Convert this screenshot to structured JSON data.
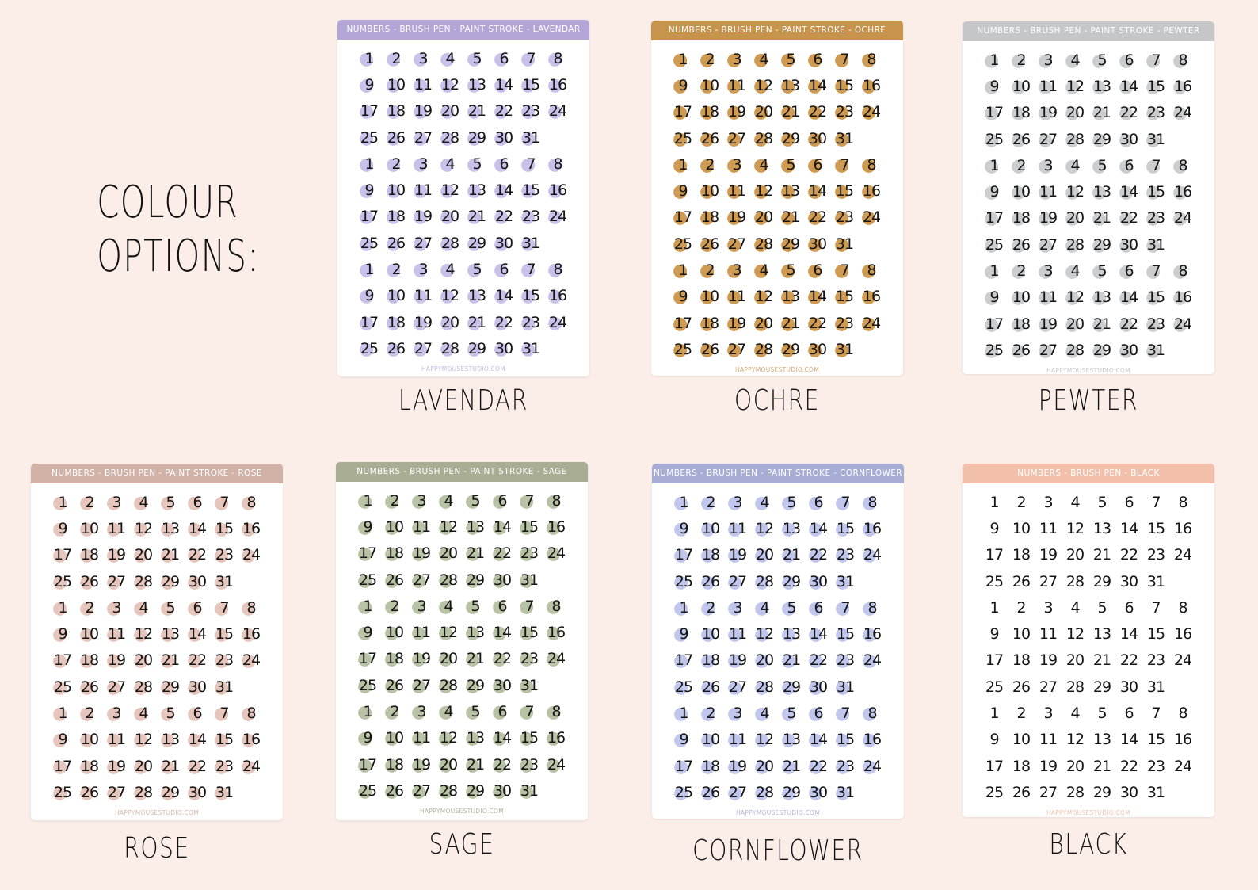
{
  "intro": {
    "line1": "COLOUR",
    "line2": "OPTIONS:"
  },
  "numbers": [
    1,
    2,
    3,
    4,
    5,
    6,
    7,
    8,
    9,
    10,
    11,
    12,
    13,
    14,
    15,
    16,
    17,
    18,
    19,
    20,
    21,
    22,
    23,
    24,
    25,
    26,
    27,
    28,
    29,
    30,
    31
  ],
  "sheets": [
    {
      "id": "lavendar",
      "header": "NUMBERS - BRUSH PEN - PAINT STROKE - LAVENDAR",
      "footer": "HAPPYMOUSESTUDIO.COM",
      "label": "LAVENDAR",
      "header_color": "#b3a6d6",
      "dot_color": "#c9c1ea",
      "footer_color": "#c8b9e2"
    },
    {
      "id": "ochre",
      "header": "NUMBERS - BRUSH PEN - PAINT STROKE - OCHRE",
      "footer": "HAPPYMOUSESTUDIO.COM",
      "label": "OCHRE",
      "header_color": "#c6944c",
      "dot_color": "#cf9a52",
      "footer_color": "#d3a873"
    },
    {
      "id": "pewter",
      "header": "NUMBERS - BRUSH PEN - PAINT STROKE - PEWTER",
      "footer": "HAPPYMOUSESTUDIO.COM",
      "label": "PEWTER",
      "header_color": "#c4c6c8",
      "dot_color": "#cbcdcf",
      "footer_color": "#c8c9cb"
    },
    {
      "id": "rose",
      "header": "NUMBERS - BRUSH PEN - PAINT STROKE - ROSE",
      "footer": "HAPPYMOUSESTUDIO.COM",
      "label": "ROSE",
      "header_color": "#d2b1a7",
      "dot_color": "#e6c6bc",
      "footer_color": "#d7b7ae"
    },
    {
      "id": "sage",
      "header": "NUMBERS - BRUSH PEN - PAINT STROKE - SAGE",
      "footer": "HAPPYMOUSESTUDIO.COM",
      "label": "SAGE",
      "header_color": "#a8ad93",
      "dot_color": "#b8c2a4",
      "footer_color": "#b1b69e"
    },
    {
      "id": "cornflower",
      "header": "NUMBERS - BRUSH PEN - PAINT STROKE - CORNFLOWER",
      "footer": "HAPPYMOUSESTUDIO.COM",
      "label": "CORNFLOWER",
      "header_color": "#a7acd4",
      "dot_color": "#c1c6ec",
      "footer_color": "#b1b5d8"
    },
    {
      "id": "black",
      "header": "NUMBERS - BRUSH PEN - BLACK",
      "footer": "HAPPYMOUSESTUDIO.COM",
      "label": "BLACK",
      "header_color": "#f2c0aa",
      "dot_color": "",
      "footer_color": "#f2c0aa"
    }
  ]
}
